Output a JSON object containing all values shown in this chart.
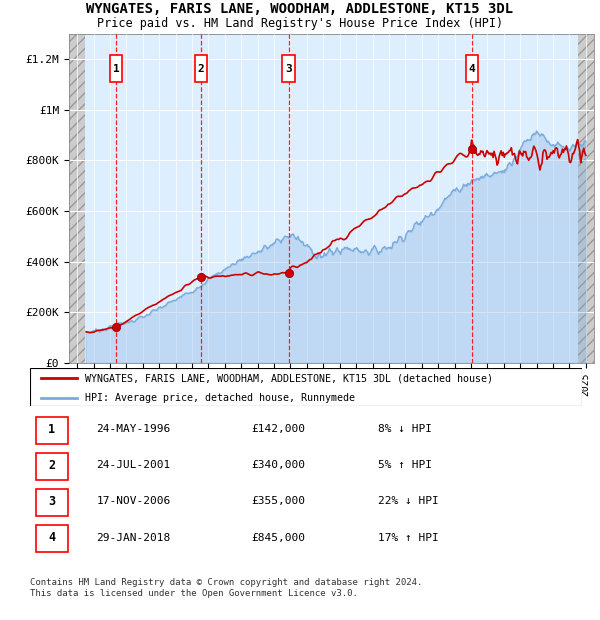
{
  "title": "WYNGATES, FARIS LANE, WOODHAM, ADDLESTONE, KT15 3DL",
  "subtitle": "Price paid vs. HM Land Registry's House Price Index (HPI)",
  "ylabel_ticks": [
    "£0",
    "£200K",
    "£400K",
    "£600K",
    "£800K",
    "£1M",
    "£1.2M"
  ],
  "ytick_values": [
    0,
    200000,
    400000,
    600000,
    800000,
    1000000,
    1200000
  ],
  "ylim": [
    0,
    1300000
  ],
  "xlim_start": 1993.5,
  "xlim_end": 2025.5,
  "sales": [
    {
      "num": 1,
      "year": 1996.38,
      "price": 142000,
      "date": "24-MAY-1996",
      "pct": "8%",
      "dir": "↓"
    },
    {
      "num": 2,
      "year": 2001.55,
      "price": 340000,
      "date": "24-JUL-2001",
      "pct": "5%",
      "dir": "↑"
    },
    {
      "num": 3,
      "year": 2006.88,
      "price": 355000,
      "date": "17-NOV-2006",
      "pct": "22%",
      "dir": "↓"
    },
    {
      "num": 4,
      "year": 2018.07,
      "price": 845000,
      "date": "29-JAN-2018",
      "pct": "17%",
      "dir": "↑"
    }
  ],
  "legend_line1": "WYNGATES, FARIS LANE, WOODHAM, ADDLESTONE, KT15 3DL (detached house)",
  "legend_line2": "HPI: Average price, detached house, Runnymede",
  "footer1": "Contains HM Land Registry data © Crown copyright and database right 2024.",
  "footer2": "This data is licensed under the Open Government Licence v3.0.",
  "table_rows": [
    [
      "1",
      "24-MAY-1996",
      "£142,000",
      "8% ↓ HPI"
    ],
    [
      "2",
      "24-JUL-2001",
      "£340,000",
      "5% ↑ HPI"
    ],
    [
      "3",
      "17-NOV-2006",
      "£355,000",
      "22% ↓ HPI"
    ],
    [
      "4",
      "29-JAN-2018",
      "£845,000",
      "17% ↑ HPI"
    ]
  ],
  "hpi_color": "#7aabdc",
  "price_color": "#cc0000",
  "bg_color": "#ddeeff",
  "hpi_years": [
    1994,
    1995,
    1996,
    1997,
    1998,
    1999,
    2000,
    2001,
    2002,
    2003,
    2004,
    2005,
    2006,
    2007,
    2008,
    2009,
    2010,
    2011,
    2012,
    2013,
    2014,
    2015,
    2016,
    2017,
    2018,
    2019,
    2020,
    2021,
    2022,
    2023,
    2024,
    2025
  ],
  "hpi_vals": [
    115000,
    125000,
    140000,
    160000,
    180000,
    215000,
    250000,
    285000,
    330000,
    370000,
    410000,
    440000,
    470000,
    510000,
    455000,
    420000,
    450000,
    450000,
    440000,
    460000,
    510000,
    560000,
    620000,
    680000,
    720000,
    740000,
    760000,
    850000,
    920000,
    860000,
    840000,
    870000
  ]
}
